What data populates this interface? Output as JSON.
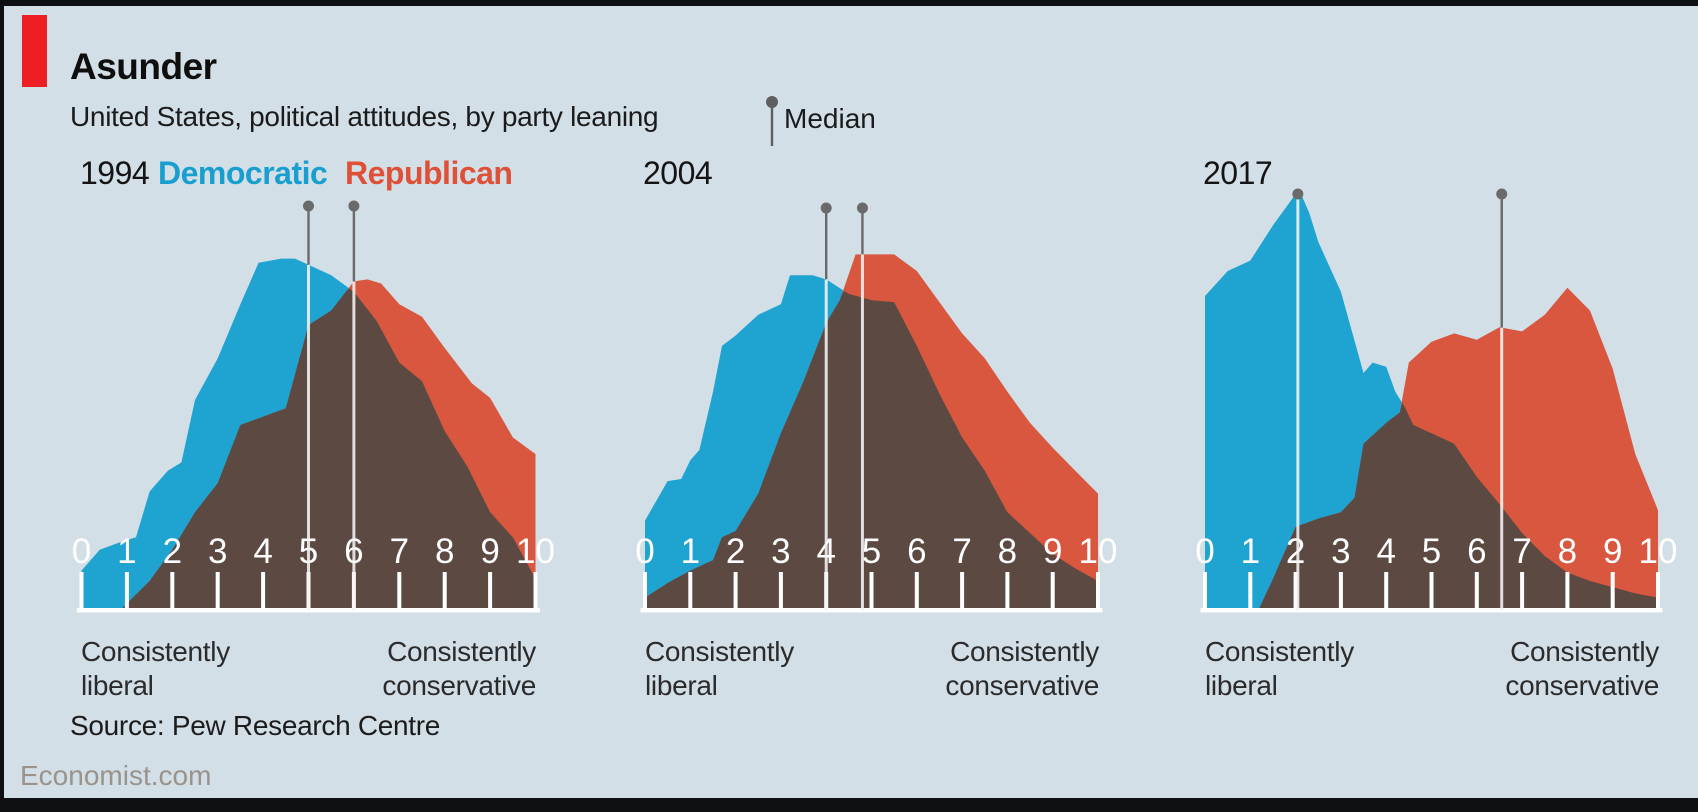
{
  "header": {
    "title": "Asunder",
    "subtitle": "United States, political attitudes, by party leaning",
    "median_label": "Median"
  },
  "legend": {
    "democratic": "Democratic",
    "republican": "Republican"
  },
  "axis_labels": {
    "left_line1": "Consistently",
    "left_line2": "liberal",
    "right_line1": "Consistently",
    "right_line2": "conservative"
  },
  "footer": {
    "source": "Source: Pew Research Centre",
    "brand": "Economist.com"
  },
  "colors": {
    "background": "#d2dfe7",
    "democratic": "#1fa3d1",
    "republican": "#d8573e",
    "overlap": "#5b4942",
    "axis": "#ffffff",
    "median_line_over_fill": "#f4f4f2",
    "median_line_above_fill": "#6a6a6a",
    "logo_red": "#ed1f24"
  },
  "chart_data": [
    {
      "type": "area",
      "year": "1994",
      "xlim": [
        0,
        10
      ],
      "ylim": [
        0,
        100
      ],
      "x_tick_labels": [
        "0",
        "1",
        "2",
        "3",
        "4",
        "5",
        "6",
        "7",
        "8",
        "9",
        "10"
      ],
      "xlabel_left": "Consistently liberal",
      "xlabel_right": "Consistently conservative",
      "medians": {
        "democratic": 5.0,
        "republican": 6.0
      },
      "series": [
        {
          "name": "Democratic",
          "points": [
            [
              0,
              9
            ],
            [
              0.4,
              14
            ],
            [
              0.9,
              16
            ],
            [
              1.2,
              17
            ],
            [
              1.5,
              28
            ],
            [
              1.9,
              33
            ],
            [
              2.2,
              35
            ],
            [
              2.5,
              50
            ],
            [
              3,
              60
            ],
            [
              3.5,
              73
            ],
            [
              3.9,
              83
            ],
            [
              4.4,
              84
            ],
            [
              4.7,
              84
            ],
            [
              5,
              82.5
            ],
            [
              5.5,
              80
            ],
            [
              6,
              76
            ],
            [
              6.5,
              69
            ],
            [
              7,
              59
            ],
            [
              7.5,
              54.5
            ],
            [
              8,
              42.5
            ],
            [
              8.5,
              34
            ],
            [
              9,
              23
            ],
            [
              9.5,
              17
            ],
            [
              10,
              7
            ]
          ]
        },
        {
          "name": "Republican",
          "points": [
            [
              0.9,
              0
            ],
            [
              1.5,
              6.5
            ],
            [
              2,
              14
            ],
            [
              2.5,
              23
            ],
            [
              3,
              30
            ],
            [
              3.5,
              44
            ],
            [
              4,
              46
            ],
            [
              4.5,
              48
            ],
            [
              5,
              68
            ],
            [
              5.5,
              71.5
            ],
            [
              6,
              78.5
            ],
            [
              6.3,
              79
            ],
            [
              6.6,
              78
            ],
            [
              7,
              73
            ],
            [
              7.5,
              70
            ],
            [
              8,
              62.5
            ],
            [
              8.6,
              54
            ],
            [
              9,
              50.5
            ],
            [
              9.5,
              41
            ],
            [
              10,
              37
            ]
          ]
        }
      ]
    },
    {
      "type": "area",
      "year": "2004",
      "xlim": [
        0,
        10
      ],
      "ylim": [
        0,
        100
      ],
      "x_tick_labels": [
        "0",
        "1",
        "2",
        "3",
        "4",
        "5",
        "6",
        "7",
        "8",
        "9",
        "10"
      ],
      "xlabel_left": "Consistently liberal",
      "xlabel_right": "Consistently conservative",
      "medians": {
        "democratic": 4.0,
        "republican": 4.8
      },
      "series": [
        {
          "name": "Democratic",
          "points": [
            [
              0,
              21
            ],
            [
              0.5,
              30.5
            ],
            [
              0.8,
              31
            ],
            [
              1,
              35.5
            ],
            [
              1.2,
              38
            ],
            [
              1.5,
              52
            ],
            [
              1.7,
              63
            ],
            [
              2,
              65.5
            ],
            [
              2.5,
              70.5
            ],
            [
              3,
              73
            ],
            [
              3.2,
              80
            ],
            [
              3.7,
              80
            ],
            [
              4,
              79
            ],
            [
              4.5,
              75.5
            ],
            [
              5,
              74
            ],
            [
              5.5,
              73.5
            ],
            [
              6,
              63
            ],
            [
              6.5,
              51.5
            ],
            [
              7,
              41
            ],
            [
              7.5,
              33
            ],
            [
              8,
              23
            ],
            [
              8.5,
              18
            ],
            [
              9,
              13
            ],
            [
              9.5,
              9.5
            ],
            [
              10,
              6.5
            ]
          ]
        },
        {
          "name": "Republican",
          "points": [
            [
              0,
              2.5
            ],
            [
              0.5,
              6
            ],
            [
              1,
              9
            ],
            [
              1.5,
              11.5
            ],
            [
              1.7,
              17
            ],
            [
              2,
              18.5
            ],
            [
              2.5,
              27.5
            ],
            [
              3,
              42
            ],
            [
              3.5,
              54.5
            ],
            [
              4,
              68.5
            ],
            [
              4.3,
              74
            ],
            [
              4.65,
              85
            ],
            [
              5,
              85
            ],
            [
              5.5,
              85
            ],
            [
              6,
              81
            ],
            [
              6.5,
              73.5
            ],
            [
              7,
              66
            ],
            [
              7.5,
              60
            ],
            [
              8,
              52
            ],
            [
              8.5,
              44.5
            ],
            [
              9,
              38.5
            ],
            [
              9.5,
              33
            ],
            [
              10,
              27.5
            ]
          ]
        }
      ]
    },
    {
      "type": "area",
      "year": "2017",
      "xlim": [
        0,
        10
      ],
      "ylim": [
        0,
        100
      ],
      "x_tick_labels": [
        "0",
        "1",
        "2",
        "3",
        "4",
        "5",
        "6",
        "7",
        "8",
        "9",
        "10"
      ],
      "xlabel_left": "Consistently liberal",
      "xlabel_right": "Consistently conservative",
      "medians": {
        "democratic": 2.05,
        "republican": 6.55
      },
      "series": [
        {
          "name": "Democratic",
          "points": [
            [
              0,
              75
            ],
            [
              0.5,
              81
            ],
            [
              1,
              83.5
            ],
            [
              1.5,
              92
            ],
            [
              2,
              99.5
            ],
            [
              2.1,
              100
            ],
            [
              2.3,
              95
            ],
            [
              2.5,
              88
            ],
            [
              3,
              76
            ],
            [
              3.5,
              56.5
            ],
            [
              3.7,
              59
            ],
            [
              4,
              58
            ],
            [
              4.2,
              52
            ],
            [
              4.4,
              48.5
            ],
            [
              4.6,
              44
            ],
            [
              5,
              42
            ],
            [
              5.5,
              39.5
            ],
            [
              6,
              31.5
            ],
            [
              6.5,
              25
            ],
            [
              7,
              18
            ],
            [
              7.5,
              12.5
            ],
            [
              8,
              8.5
            ],
            [
              8.5,
              6.5
            ],
            [
              9,
              5
            ],
            [
              9.5,
              3.5
            ],
            [
              10,
              2.5
            ]
          ]
        },
        {
          "name": "Republican",
          "points": [
            [
              1.2,
              0
            ],
            [
              1.5,
              7
            ],
            [
              2,
              19.5
            ],
            [
              2.5,
              21.5
            ],
            [
              3,
              23
            ],
            [
              3.3,
              26.5
            ],
            [
              3.5,
              39.5
            ],
            [
              4,
              44.5
            ],
            [
              4.3,
              47
            ],
            [
              4.5,
              59
            ],
            [
              5,
              64
            ],
            [
              5.5,
              66
            ],
            [
              6,
              64.5
            ],
            [
              6.5,
              67.5
            ],
            [
              7,
              66.5
            ],
            [
              7.5,
              70.5
            ],
            [
              8,
              77
            ],
            [
              8.5,
              71.5
            ],
            [
              9,
              57.5
            ],
            [
              9.5,
              37
            ],
            [
              10,
              23.5
            ]
          ]
        }
      ]
    }
  ]
}
